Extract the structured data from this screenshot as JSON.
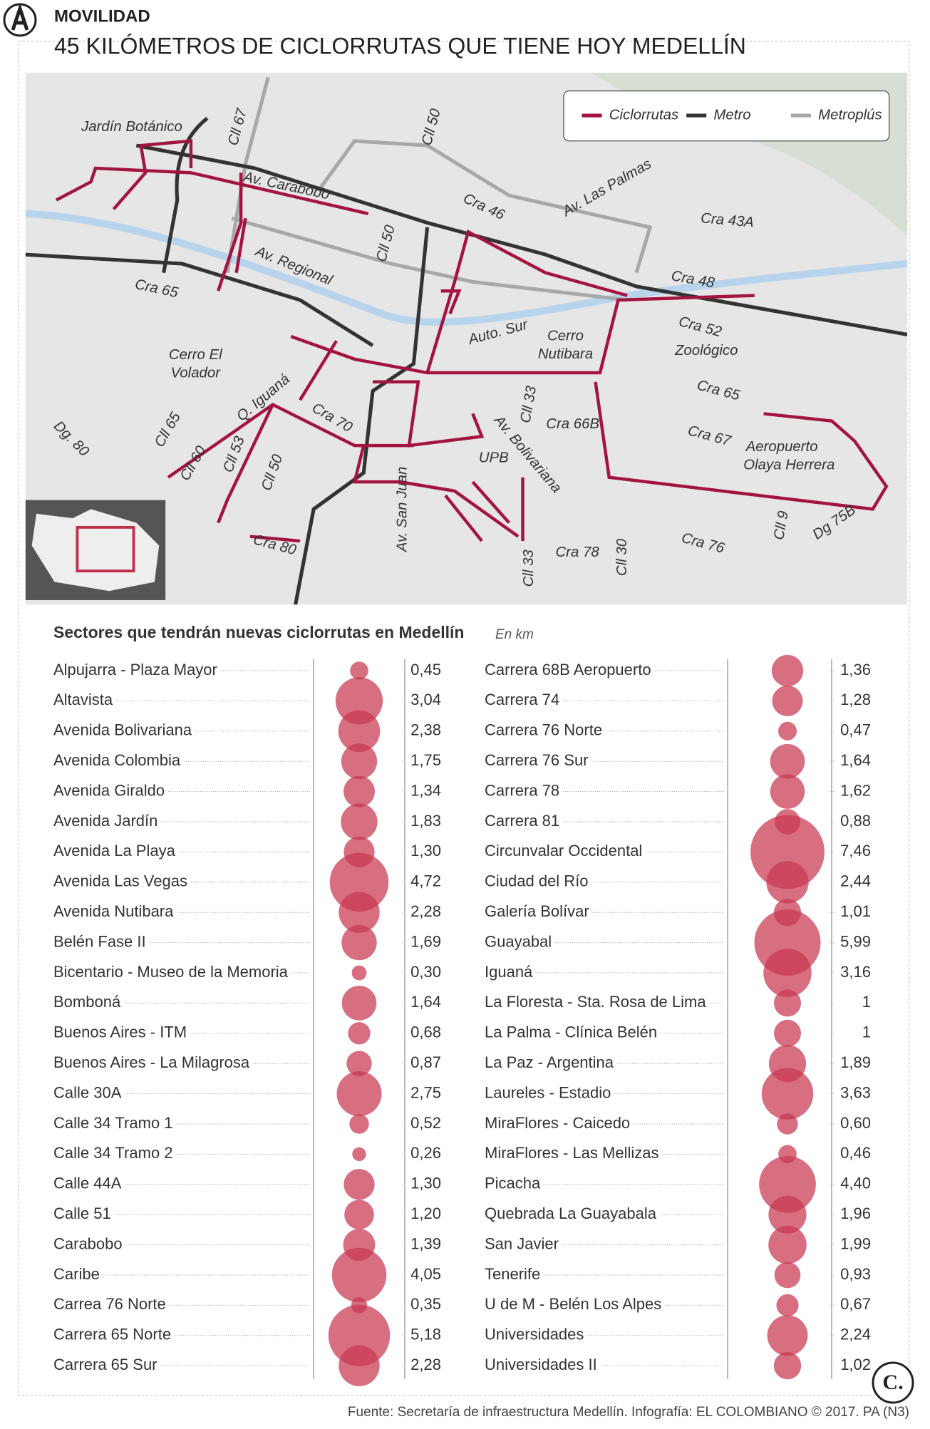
{
  "header": {
    "section": "MOVILIDAD",
    "title": "45 KILÓMETROS DE CICLORRUTAS QUE TIENE HOY MEDELLÍN"
  },
  "map": {
    "legend": [
      {
        "name": "Ciclorrutas",
        "color": "#a3143f"
      },
      {
        "name": "Metro",
        "color": "#333333"
      },
      {
        "name": "Metroplús",
        "color": "#a8a8a8"
      }
    ],
    "labels": [
      "Jardín Botánico",
      "Cll 67",
      "Cll 50",
      "Av. Carabobo",
      "Cra 46",
      "Av. Las Palmas",
      "Cra 43A",
      "Cll 50",
      "Av. Regional",
      "Cra 65",
      "Cra 48",
      "Auto. Sur",
      "Cerro",
      "Nutibara",
      "Cra 52",
      "Zoológico",
      "Cerro El",
      "Volador",
      "Cra 65",
      "Q. Iguaná",
      "Cra 70",
      "Cll 33",
      "Cra 66B",
      "Av. Bolivariana",
      "Cra 67",
      "Aeropuerto",
      "Olaya Herrera",
      "Cll 65",
      "Dg. 80",
      "Cll 60",
      "Cll 53",
      "Cll 50",
      "UPB",
      "Av. San Juan",
      "Cll 33",
      "Cra 78",
      "Cll 30",
      "Cra 76",
      "Cll 9",
      "Dg 75B",
      "Cra 80"
    ]
  },
  "chart_data": {
    "type": "bubble",
    "title": "Sectores que tendrán nuevas ciclorrutas en Medellín",
    "subtitle": "En km",
    "color": "#c8374f",
    "categories": [
      "Alpujarra - Plaza Mayor",
      "Altavista",
      "Avenida Bolivariana",
      "Avenida Colombia",
      "Avenida Giraldo",
      "Avenida Jardín",
      "Avenida La Playa",
      "Avenida Las Vegas",
      "Avenida Nutibara",
      "Belén Fase II",
      "Bicentario - Museo de la Memoria",
      "Bomboná",
      "Buenos Aires - ITM",
      "Buenos Aires - La Milagrosa",
      "Calle 30A",
      "Calle 34 Tramo 1",
      "Calle 34 Tramo 2",
      "Calle 44A",
      "Calle 51",
      "Carabobo",
      "Caribe",
      "Carrea 76 Norte",
      "Carrera 65 Norte",
      "Carrera 65 Sur",
      "Carrera 68B Aeropuerto",
      "Carrera 74",
      "Carrera 76 Norte",
      "Carrera 76 Sur",
      "Carrera 78",
      "Carrera 81",
      "Circunvalar Occidental",
      "Ciudad del Río",
      "Galería Bolívar",
      "Guayabal",
      "Iguaná",
      "La Floresta - Sta. Rosa de Lima",
      "La Palma - Clínica Belén",
      "La Paz - Argentina",
      "Laureles - Estadio",
      "MiraFlores - Caicedo",
      "MiraFlores - Las Mellizas",
      "Picacha",
      "Quebrada La Guayabala",
      "San Javier",
      "Tenerife",
      "U de M - Belén Los Alpes",
      "Universidades",
      "Universidades II"
    ],
    "values": [
      0.45,
      3.04,
      2.38,
      1.75,
      1.34,
      1.83,
      1.3,
      4.72,
      2.28,
      1.69,
      0.3,
      1.64,
      0.68,
      0.87,
      2.75,
      0.52,
      0.26,
      1.3,
      1.2,
      1.39,
      4.05,
      0.35,
      5.18,
      2.28,
      1.36,
      1.28,
      0.47,
      1.64,
      1.62,
      0.88,
      7.46,
      2.44,
      1.01,
      5.99,
      3.16,
      1,
      1,
      1.89,
      3.63,
      0.6,
      0.46,
      4.4,
      1.96,
      1.99,
      0.93,
      0.67,
      2.24,
      1.02
    ],
    "value_labels": [
      "0,45",
      "3,04",
      "2,38",
      "1,75",
      "1,34",
      "1,83",
      "1,30",
      "4,72",
      "2,28",
      "1,69",
      "0,30",
      "1,64",
      "0,68",
      "0,87",
      "2,75",
      "0,52",
      "0,26",
      "1,30",
      "1,20",
      "1,39",
      "4,05",
      "0,35",
      "5,18",
      "2,28",
      "1,36",
      "1,28",
      "0,47",
      "1,64",
      "1,62",
      "0,88",
      "7,46",
      "2,44",
      "1,01",
      "5,99",
      "3,16",
      "1",
      "1",
      "1,89",
      "3,63",
      "0,60",
      "0,46",
      "4,40",
      "1,96",
      "1,99",
      "0,93",
      "0,67",
      "2,24",
      "1,02"
    ]
  },
  "source": "Fuente: Secretaría de infraestructura Medellín. Infografía: EL COLOMBIANO © 2017. PA (N3)",
  "logo": "C."
}
